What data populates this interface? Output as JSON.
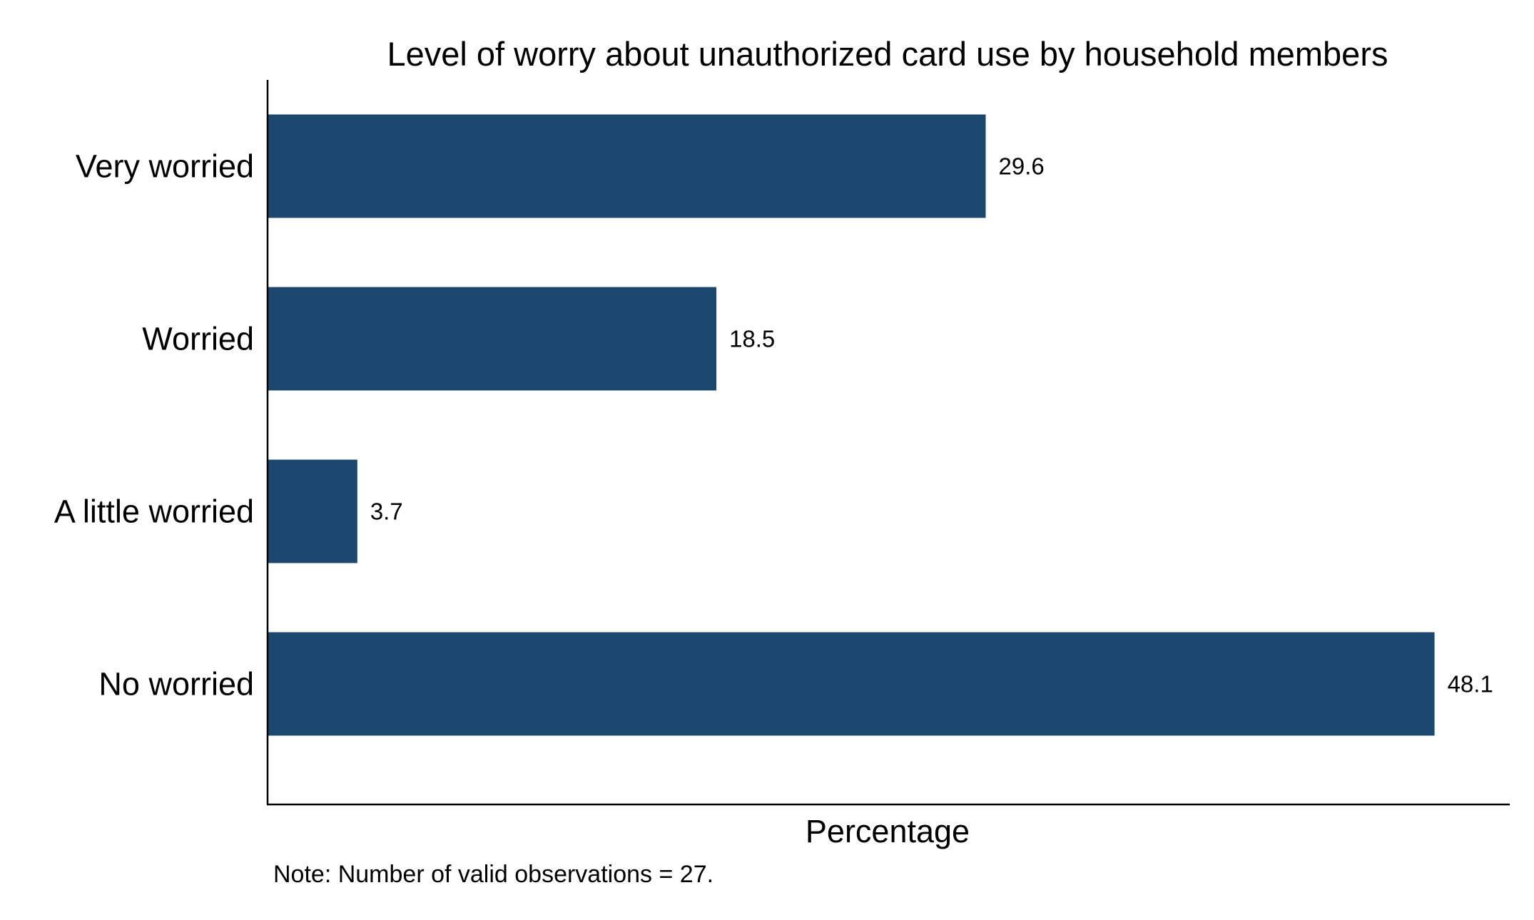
{
  "chart_data": {
    "type": "bar",
    "orientation": "horizontal",
    "title": "Level of worry about unauthorized card use by household members",
    "categories": [
      "Very worried",
      "Worried",
      "A little worried",
      "No worried"
    ],
    "values": [
      29.6,
      18.5,
      3.7,
      48.1
    ],
    "value_labels": [
      "29.6",
      "18.5",
      "3.7",
      "48.1"
    ],
    "xlabel": "Percentage",
    "ylabel": "",
    "xlim": [
      0,
      51.2
    ],
    "grid": false,
    "bar_color": "#1c476f",
    "note": "Note: Number of valid observations = 27."
  }
}
